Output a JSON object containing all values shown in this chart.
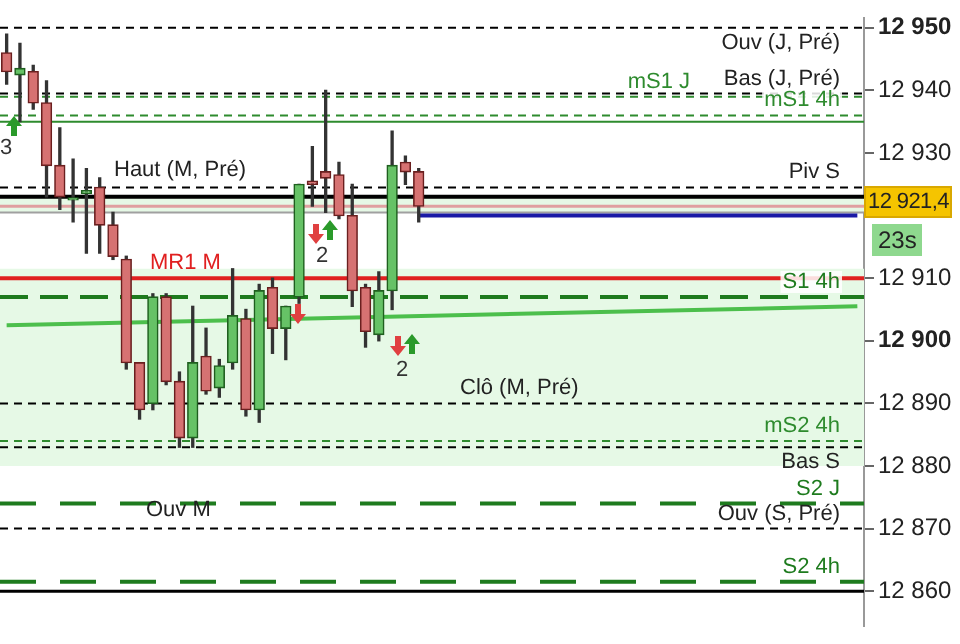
{
  "chart_data": {
    "type": "candlestick",
    "categories": [
      null,
      null,
      null,
      null,
      null,
      null,
      null,
      null,
      null,
      null,
      null,
      null,
      null,
      null,
      null,
      null,
      null,
      null,
      null,
      null,
      null,
      null,
      null,
      null,
      null,
      null,
      null,
      null,
      null,
      null,
      null,
      null,
      null,
      null,
      null,
      null,
      null,
      null,
      null,
      null,
      null,
      null,
      null,
      null,
      null,
      null,
      null,
      null,
      null,
      null,
      null,
      null,
      null,
      null,
      null,
      null,
      null,
      null,
      null,
      null,
      null,
      null,
      null,
      null,
      null
    ],
    "ohlc": [
      [
        12946,
        12949,
        12941,
        12943
      ],
      [
        12942.5,
        12947.5,
        12935,
        12943.5
      ],
      [
        12943,
        12944,
        12937,
        12938
      ],
      [
        12938,
        12941.5,
        12923,
        12928
      ],
      [
        12928,
        12934,
        12921,
        12923
      ],
      [
        12922.5,
        12929,
        12919,
        12922.5
      ],
      [
        12923.5,
        12927.5,
        12914,
        12924
      ],
      [
        12924.5,
        12926,
        12914,
        12918.5
      ],
      [
        12918.5,
        12920.5,
        12913,
        12913.5
      ],
      [
        12913,
        12913.5,
        12895.5,
        12896.5
      ],
      [
        12896.5,
        12896.5,
        12887.5,
        12889
      ],
      [
        12890,
        12907.5,
        12889,
        12907
      ],
      [
        12907,
        12907.5,
        12893,
        12893.5
      ],
      [
        12893.5,
        12895,
        12883,
        12884.5
      ],
      [
        12884.5,
        12905.5,
        12883,
        12896.5
      ],
      [
        12897.5,
        12902,
        12891.5,
        12892
      ],
      [
        12892.5,
        12897,
        12891,
        12896
      ],
      [
        12896.5,
        12911.5,
        12895.5,
        12904
      ],
      [
        12903.5,
        12905,
        12888,
        12889
      ],
      [
        12889,
        12909,
        12887,
        12908
      ],
      [
        12908.5,
        12910,
        12898,
        12902
      ],
      [
        12902,
        12905.5,
        12897,
        12905.5
      ],
      [
        12907,
        12925,
        12906,
        12925
      ],
      [
        12925.5,
        12931,
        12921.5,
        12925
      ],
      [
        12927,
        12940,
        12920.5,
        12926
      ],
      [
        12926.5,
        12928.5,
        12919.5,
        12920
      ],
      [
        12920,
        12925,
        12905.5,
        12908
      ],
      [
        12908.5,
        12909,
        12899,
        12901.5
      ],
      [
        12901,
        12911,
        12900,
        12908
      ],
      [
        12908,
        12933.5,
        12905,
        12928
      ],
      [
        12928.5,
        12929.5,
        12925,
        12927
      ],
      [
        12927,
        12927.5,
        12919,
        12921.5
      ],
      null,
      null,
      null,
      null,
      null,
      null,
      null,
      null,
      null,
      null,
      null,
      null,
      null,
      null,
      null,
      null,
      null,
      null,
      null,
      null,
      null,
      null,
      null,
      null,
      null,
      null,
      null,
      null,
      null,
      null,
      null,
      null,
      null
    ],
    "series": [
      {
        "type": "line",
        "color": "#4cbf4c",
        "values": [
          12902.5,
          null,
          null,
          null,
          null,
          null,
          null,
          null,
          null,
          null,
          null,
          null,
          null,
          null,
          null,
          null,
          null,
          null,
          null,
          null,
          null,
          null,
          null,
          null,
          null,
          null,
          null,
          null,
          null,
          null,
          null,
          null,
          null,
          null,
          null,
          null,
          null,
          null,
          null,
          null,
          null,
          null,
          null,
          null,
          null,
          null,
          null,
          null,
          null,
          null,
          null,
          null,
          null,
          null,
          null,
          null,
          null,
          null,
          null,
          null,
          null,
          null,
          null,
          null,
          12905.5
        ]
      },
      {
        "type": "line",
        "color": "#1a1aa6",
        "values": [
          null,
          null,
          null,
          null,
          null,
          null,
          null,
          null,
          null,
          null,
          null,
          null,
          null,
          null,
          null,
          null,
          null,
          null,
          null,
          null,
          null,
          null,
          null,
          null,
          null,
          null,
          null,
          null,
          null,
          null,
          null,
          12920,
          null,
          null,
          null,
          null,
          null,
          null,
          null,
          null,
          null,
          null,
          null,
          null,
          null,
          null,
          null,
          null,
          null,
          null,
          null,
          null,
          null,
          null,
          null,
          null,
          null,
          null,
          null,
          null,
          null,
          null,
          null,
          null,
          12920
        ]
      }
    ],
    "ylim": [
      12854.5,
      12951.5
    ],
    "yticks": [
      {
        "value": 12860,
        "label": "12 860"
      },
      {
        "value": 12870,
        "label": "12 870"
      },
      {
        "value": 12880,
        "label": "12 880"
      },
      {
        "value": 12890,
        "label": "12 890"
      },
      {
        "value": 12900,
        "label": "12 900"
      },
      {
        "value": 12910,
        "label": "12 910"
      },
      {
        "value": 12930,
        "label": "12 930"
      },
      {
        "value": 12940,
        "label": "12 940"
      },
      {
        "value": 12950,
        "label": "12 950"
      }
    ],
    "tick_labels": "y",
    "grid": false,
    "legend": false,
    "bands": [
      {
        "axis": "y",
        "from": 12880,
        "to": 12911.5,
        "color": "#e6f9e6"
      },
      {
        "axis": "y",
        "from": 12920.5,
        "to": 12923,
        "color": "#e6f9e6"
      }
    ],
    "ref_lines": [
      {
        "axis": "y",
        "value": 12950,
        "label": "Ouv (J, Pré)",
        "color": "#000000",
        "line_style": "dashed"
      },
      {
        "axis": "y",
        "value": 12939.5,
        "label": "Bas (J, Pré)",
        "color": "#000000",
        "line_style": "dashed"
      },
      {
        "axis": "y",
        "value": 12939,
        "label": "mS1 J",
        "color": "#2e8b2e",
        "line_style": "dashed"
      },
      {
        "axis": "y",
        "value": 12936,
        "label": "mS1 4h",
        "color": "#2e8b2e",
        "line_style": "dashed"
      },
      {
        "axis": "y",
        "value": 12935,
        "color": "#2e8b2e",
        "line_style": "solid"
      },
      {
        "axis": "y",
        "value": 12924.5,
        "label": "Piv S",
        "color": "#000000",
        "line_style": "dashed"
      },
      {
        "axis": "y",
        "value": 12923,
        "color": "#000000",
        "line_style": "solid"
      },
      {
        "axis": "y",
        "value": 12921.5,
        "color": "#e0a0a0",
        "line_style": "solid"
      },
      {
        "axis": "y",
        "value": 12920.5,
        "color": "#a0a0a0",
        "line_style": "solid"
      },
      {
        "axis": "y",
        "value": 12910,
        "label": "MR1 M",
        "color": "#e02020",
        "line_style": "solid"
      },
      {
        "axis": "y",
        "value": 12907,
        "label": "S1 4h",
        "color": "#1e7b1e",
        "line_style": "dashed"
      },
      {
        "axis": "y",
        "value": 12890,
        "label": "Clô (M, Pré)",
        "color": "#000000",
        "line_style": "dashed"
      },
      {
        "axis": "y",
        "value": 12884,
        "label": "mS2 4h",
        "color": "#2e8b2e",
        "line_style": "dashed"
      },
      {
        "axis": "y",
        "value": 12883,
        "label": "Bas S",
        "color": "#000000",
        "line_style": "dashed"
      },
      {
        "axis": "y",
        "value": 12874,
        "label": "S2 J",
        "color": "#1e7b1e",
        "line_style": "dashed"
      },
      {
        "axis": "y",
        "value": 12870,
        "label": "Ouv (S, Pré)",
        "color": "#000000",
        "line_style": "dashed"
      },
      {
        "axis": "y",
        "value": 12861.5,
        "label": "S2 4h",
        "color": "#1e7b1e",
        "line_style": "dashed"
      },
      {
        "axis": "y",
        "value": 12860,
        "color": "#000000",
        "line_style": "solid"
      }
    ],
    "annotations": [
      "3",
      "2",
      "2",
      "12 921,4",
      "23s",
      {
        "text": "Haut (M, Pré)",
        "y": 12924.5
      },
      {
        "text": "Ouv M",
        "y": 12870
      }
    ]
  }
}
